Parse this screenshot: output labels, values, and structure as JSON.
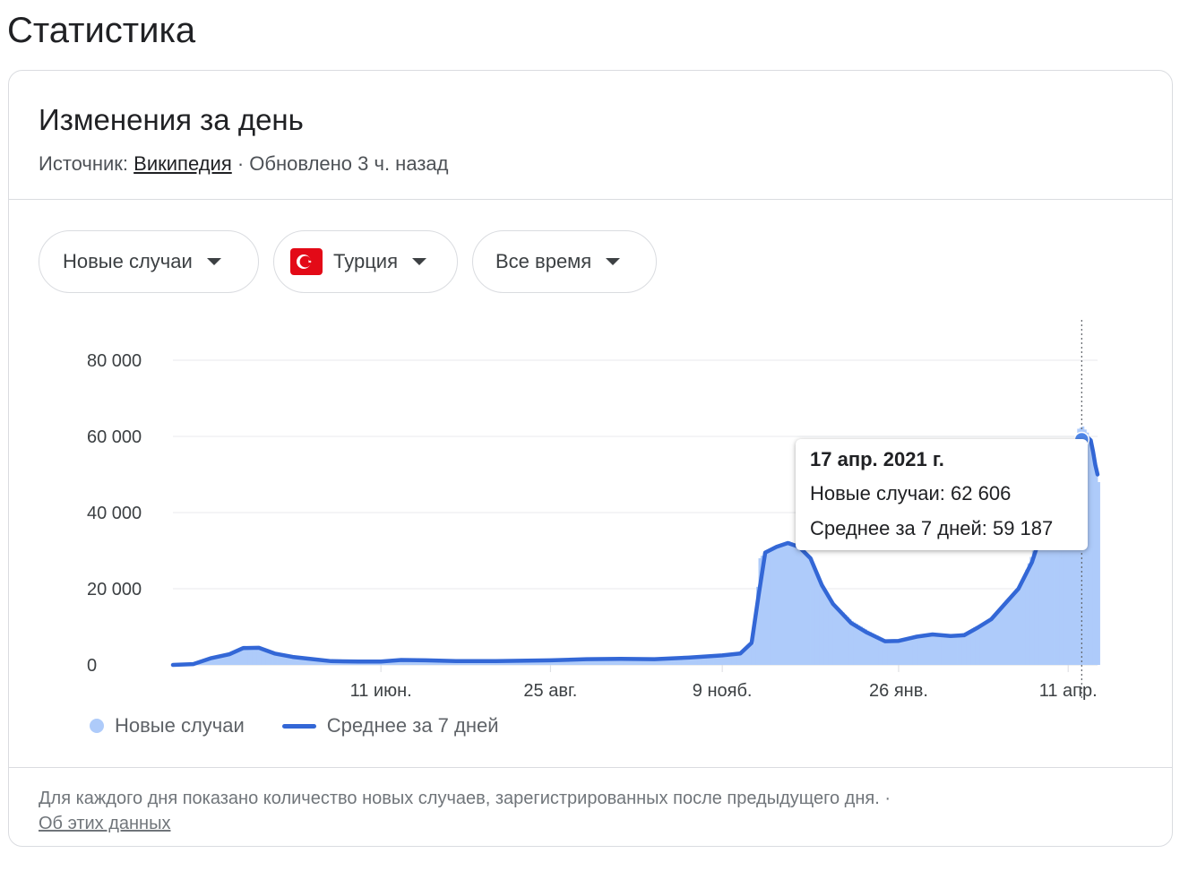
{
  "page_title": "Статистика",
  "card": {
    "title": "Изменения за день",
    "source_label": "Источник: ",
    "source_link": "Википедия",
    "updated": " · Обновлено 3 ч. назад"
  },
  "filters": {
    "metric": "Новые случаи",
    "country": "Турция",
    "period": "Все время"
  },
  "colors": {
    "bars": "#aecbfa",
    "avg_line": "#3367d6",
    "flag_red": "#e30a17"
  },
  "legend": {
    "bars": "Новые случаи",
    "line": "Среднее за 7 дней"
  },
  "tooltip": {
    "date": "17 апр. 2021 г.",
    "new_cases": "Новые случаи: 62 606",
    "average": "Среднее за 7 дней: 59 187"
  },
  "footer": {
    "text": "Для каждого дня показано количество новых случаев, зарегистрированных после предыдущего дня.",
    "separator": " · ",
    "link": "Об этих данных"
  },
  "chart_data": {
    "type": "area",
    "y_ticks": [
      {
        "value": 0,
        "label": "0"
      },
      {
        "value": 20000,
        "label": "20 000"
      },
      {
        "value": 40000,
        "label": "40 000"
      },
      {
        "value": 60000,
        "label": "60 000"
      },
      {
        "value": 80000,
        "label": "80 000"
      }
    ],
    "ylim": [
      0,
      80000
    ],
    "x_range": [
      "2020-03-11",
      "2021-04-24"
    ],
    "x_ticks": [
      {
        "date": "2020-06-11",
        "label": "11 июн."
      },
      {
        "date": "2020-08-25",
        "label": "25 авг."
      },
      {
        "date": "2020-11-09",
        "label": "9 нояб."
      },
      {
        "date": "2021-01-26",
        "label": "26 янв."
      },
      {
        "date": "2021-04-11",
        "label": "11 апр."
      }
    ],
    "highlight": {
      "date": "2021-04-17",
      "new_cases": 62606,
      "average": 59187
    },
    "series": [
      {
        "name": "Новые случаи",
        "style": "bars",
        "points": [
          [
            "2020-03-11",
            0
          ],
          [
            "2020-03-20",
            200
          ],
          [
            "2020-03-28",
            2000
          ],
          [
            "2020-04-05",
            3100
          ],
          [
            "2020-04-11",
            5000
          ],
          [
            "2020-04-18",
            4100
          ],
          [
            "2020-04-25",
            2900
          ],
          [
            "2020-05-03",
            1700
          ],
          [
            "2020-05-12",
            1500
          ],
          [
            "2020-05-20",
            1000
          ],
          [
            "2020-06-01",
            850
          ],
          [
            "2020-06-11",
            1000
          ],
          [
            "2020-06-20",
            1400
          ],
          [
            "2020-07-01",
            1200
          ],
          [
            "2020-07-15",
            1000
          ],
          [
            "2020-08-01",
            1000
          ],
          [
            "2020-08-25",
            1400
          ],
          [
            "2020-09-10",
            1700
          ],
          [
            "2020-09-25",
            1600
          ],
          [
            "2020-10-10",
            1600
          ],
          [
            "2020-10-25",
            2100
          ],
          [
            "2020-11-09",
            2600
          ],
          [
            "2020-11-17",
            3300
          ],
          [
            "2020-11-22",
            5500
          ],
          [
            "2020-11-25",
            28000
          ],
          [
            "2020-11-28",
            30000
          ],
          [
            "2020-12-03",
            31500
          ],
          [
            "2020-12-08",
            32500
          ],
          [
            "2020-12-13",
            31000
          ],
          [
            "2020-12-18",
            28000
          ],
          [
            "2020-12-23",
            20000
          ],
          [
            "2020-12-28",
            16000
          ],
          [
            "2021-01-05",
            11500
          ],
          [
            "2021-01-12",
            9000
          ],
          [
            "2021-01-20",
            6500
          ],
          [
            "2021-01-26",
            6500
          ],
          [
            "2021-02-03",
            7500
          ],
          [
            "2021-02-10",
            8000
          ],
          [
            "2021-02-18",
            7800
          ],
          [
            "2021-02-24",
            8500
          ],
          [
            "2021-03-02",
            10500
          ],
          [
            "2021-03-08",
            12500
          ],
          [
            "2021-03-14",
            17000
          ],
          [
            "2021-03-20",
            20000
          ],
          [
            "2021-03-26",
            30000
          ],
          [
            "2021-03-31",
            38000
          ],
          [
            "2021-04-04",
            41000
          ],
          [
            "2021-04-08",
            51000
          ],
          [
            "2021-04-12",
            56000
          ],
          [
            "2021-04-15",
            62000
          ],
          [
            "2021-04-17",
            62606
          ],
          [
            "2021-04-19",
            61000
          ],
          [
            "2021-04-21",
            57000
          ],
          [
            "2021-04-22",
            54000
          ],
          [
            "2021-04-23",
            51000
          ],
          [
            "2021-04-24",
            48000
          ]
        ]
      },
      {
        "name": "Среднее за 7 дней",
        "style": "line",
        "points": [
          [
            "2020-03-11",
            0
          ],
          [
            "2020-03-20",
            200
          ],
          [
            "2020-03-28",
            1800
          ],
          [
            "2020-04-05",
            2800
          ],
          [
            "2020-04-11",
            4400
          ],
          [
            "2020-04-18",
            4500
          ],
          [
            "2020-04-25",
            3000
          ],
          [
            "2020-05-03",
            2100
          ],
          [
            "2020-05-12",
            1500
          ],
          [
            "2020-05-20",
            1000
          ],
          [
            "2020-06-01",
            900
          ],
          [
            "2020-06-11",
            900
          ],
          [
            "2020-06-20",
            1300
          ],
          [
            "2020-07-01",
            1200
          ],
          [
            "2020-07-15",
            1000
          ],
          [
            "2020-08-01",
            1000
          ],
          [
            "2020-08-25",
            1200
          ],
          [
            "2020-09-10",
            1500
          ],
          [
            "2020-09-25",
            1600
          ],
          [
            "2020-10-10",
            1500
          ],
          [
            "2020-10-25",
            1900
          ],
          [
            "2020-11-09",
            2500
          ],
          [
            "2020-11-17",
            3000
          ],
          [
            "2020-11-22",
            5800
          ],
          [
            "2020-11-25",
            18000
          ],
          [
            "2020-11-28",
            29500
          ],
          [
            "2020-12-03",
            31000
          ],
          [
            "2020-12-08",
            32000
          ],
          [
            "2020-12-13",
            31000
          ],
          [
            "2020-12-18",
            28000
          ],
          [
            "2020-12-23",
            21000
          ],
          [
            "2020-12-28",
            16000
          ],
          [
            "2021-01-05",
            11000
          ],
          [
            "2021-01-12",
            8500
          ],
          [
            "2021-01-20",
            6200
          ],
          [
            "2021-01-26",
            6300
          ],
          [
            "2021-02-03",
            7400
          ],
          [
            "2021-02-10",
            8000
          ],
          [
            "2021-02-18",
            7600
          ],
          [
            "2021-02-24",
            7800
          ],
          [
            "2021-03-02",
            9800
          ],
          [
            "2021-03-08",
            12000
          ],
          [
            "2021-03-14",
            16000
          ],
          [
            "2021-03-20",
            20000
          ],
          [
            "2021-03-26",
            27000
          ],
          [
            "2021-03-31",
            36000
          ],
          [
            "2021-04-04",
            43000
          ],
          [
            "2021-04-08",
            49000
          ],
          [
            "2021-04-12",
            55000
          ],
          [
            "2021-04-15",
            58000
          ],
          [
            "2021-04-17",
            59187
          ],
          [
            "2021-04-19",
            60000
          ],
          [
            "2021-04-21",
            59000
          ],
          [
            "2021-04-22",
            56000
          ],
          [
            "2021-04-23",
            52500
          ],
          [
            "2021-04-24",
            50000
          ]
        ]
      }
    ]
  }
}
